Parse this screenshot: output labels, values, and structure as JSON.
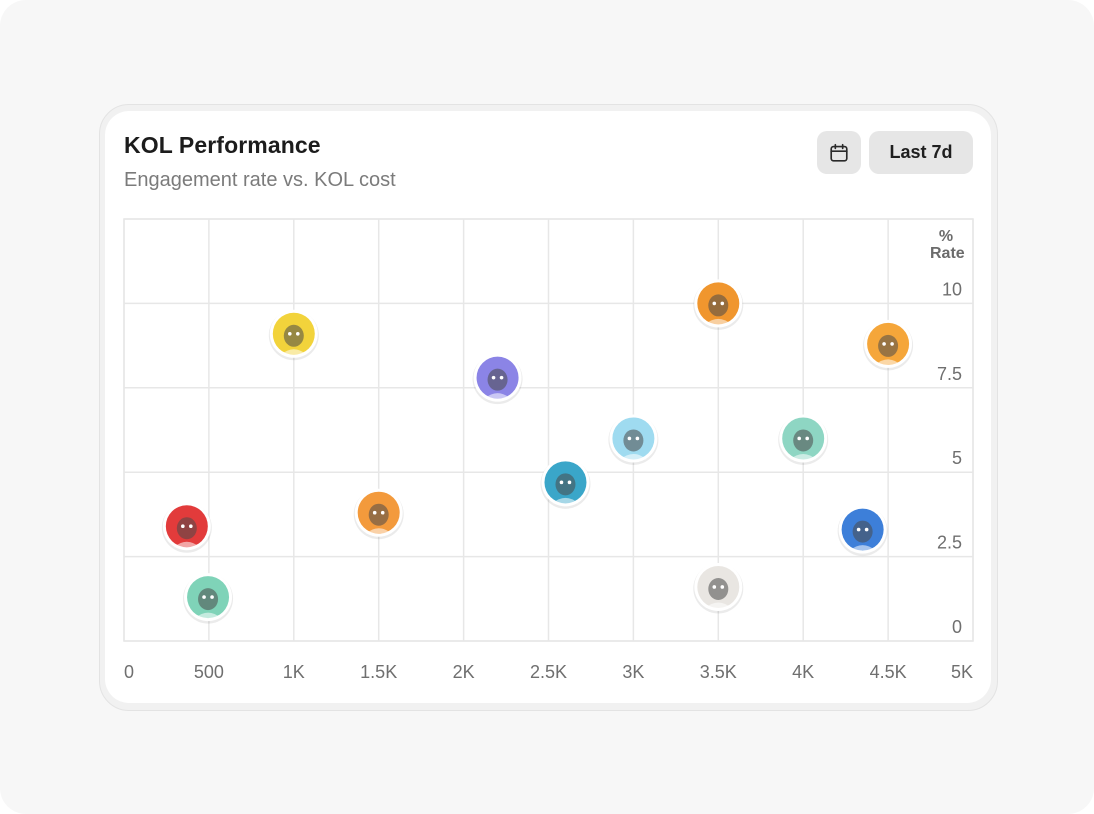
{
  "header": {
    "title": "KOL Performance",
    "subtitle": "Engagement rate vs. KOL cost",
    "calendar_icon": "calendar-icon",
    "range_label": "Last 7d"
  },
  "chart_data": {
    "type": "scatter",
    "title": "KOL Performance",
    "subtitle": "Engagement rate vs. KOL cost",
    "xlabel": "",
    "ylabel": "% Rate",
    "xlim": [
      0,
      5000
    ],
    "ylim": [
      0,
      12.5
    ],
    "x_ticks": [
      0,
      500,
      1000,
      1500,
      2000,
      2500,
      3000,
      3500,
      4000,
      4500,
      5000
    ],
    "x_tick_labels": [
      "0",
      "500",
      "1K",
      "1.5K",
      "2K",
      "2.5K",
      "3K",
      "3.5K",
      "4K",
      "4.5K",
      "5K"
    ],
    "y_ticks": [
      0,
      2.5,
      5,
      7.5,
      10
    ],
    "y_tick_labels": [
      "0",
      "2.5",
      "5",
      "7.5",
      "10"
    ],
    "grid": true,
    "points": [
      {
        "x": 370,
        "y": 3.4,
        "color": "#e23b3b"
      },
      {
        "x": 495,
        "y": 1.3,
        "color": "#7fd3b8"
      },
      {
        "x": 1000,
        "y": 9.1,
        "color": "#f2d33b"
      },
      {
        "x": 1500,
        "y": 3.8,
        "color": "#f39a3c"
      },
      {
        "x": 2200,
        "y": 7.8,
        "color": "#8b84e6"
      },
      {
        "x": 2600,
        "y": 4.7,
        "color": "#3aa6c9"
      },
      {
        "x": 3000,
        "y": 6.0,
        "color": "#9fdbf0"
      },
      {
        "x": 3500,
        "y": 10.0,
        "color": "#f0962e"
      },
      {
        "x": 3500,
        "y": 1.6,
        "color": "#e9e6e2"
      },
      {
        "x": 4000,
        "y": 6.0,
        "color": "#8ed6c3"
      },
      {
        "x": 4350,
        "y": 3.3,
        "color": "#3d7fd9"
      },
      {
        "x": 4500,
        "y": 8.8,
        "color": "#f5a63a"
      }
    ]
  }
}
